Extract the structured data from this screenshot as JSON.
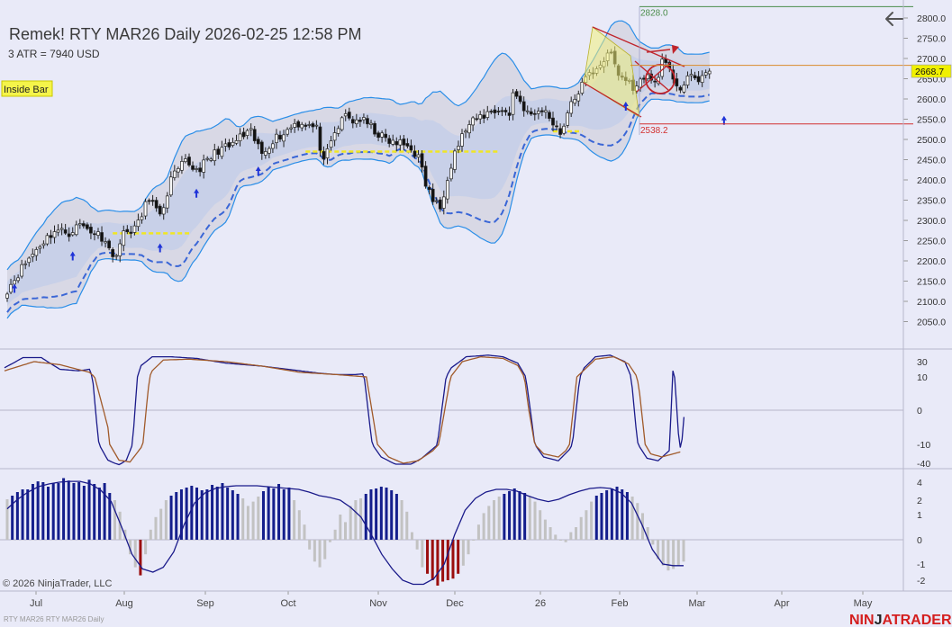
{
  "header": {
    "title": "Remek!  RTY MAR26  Daily  2026-02-25 12:58 PM",
    "atr_text": "3 ATR = 7940 USD",
    "inside_bar_label": "Inside Bar",
    "back_icon": "arrow-left-icon"
  },
  "footer": {
    "copyright": "© 2026 NinjaTrader, LLC",
    "series_label": "RTY MAR26 RTY MAR26 Daily",
    "brand_left": "NIN",
    "brand_mid": "J",
    "brand_right": "ATRADER"
  },
  "colors": {
    "background": "#e9eaf8",
    "bull_candle": "#ffffff",
    "bear_candle": "#111111",
    "outer_band": "#2a8ee8",
    "middle_dash": "#3a66d6",
    "pivot_line": "#f0e624",
    "stoch_k": "#1a1a8a",
    "stoch_d": "#a05a2a",
    "hist_positive_strong": "#141e8c",
    "hist_negative_strong": "#9b0e0e",
    "hist_weak": "#c2c2c2",
    "price_tag": "#f0f000",
    "high_line": "#4a8c4a",
    "low_line": "#d23030",
    "mid_line": "#d98a2a",
    "brand_red": "#d41e1e"
  },
  "chart_data": [
    {
      "type": "candlestick",
      "title": "RTY MAR26 Daily",
      "y_ticks": [
        2800,
        2750,
        2700,
        2650,
        2600,
        2550,
        2500,
        2450,
        2400,
        2350,
        2300,
        2250,
        2200,
        2150,
        2100,
        2050
      ],
      "y_tick_labels": [
        "2800.0",
        "2750.0",
        "2700.0",
        "2650.0",
        "2600.0",
        "2550.0",
        "2500.0",
        "2450.0",
        "2400.0",
        "2350.0",
        "2300.0",
        "2250.0",
        "2200.0",
        "2150.0",
        "2100.0",
        "2050.0"
      ],
      "ylim": [
        2025,
        2830
      ],
      "x_labels": [
        "Jul",
        "Aug",
        "Sep",
        "Oct",
        "Nov",
        "Dec",
        "26",
        "Feb",
        "Mar",
        "Apr",
        "May"
      ],
      "close_path": [
        [
          0,
          2130
        ],
        [
          5,
          2195
        ],
        [
          9,
          2240
        ],
        [
          13,
          2275
        ],
        [
          17,
          2270
        ],
        [
          20,
          2290
        ],
        [
          24,
          2270
        ],
        [
          27,
          2255
        ],
        [
          29,
          2205
        ],
        [
          32,
          2265
        ],
        [
          36,
          2290
        ],
        [
          39,
          2360
        ],
        [
          42,
          2305
        ],
        [
          45,
          2400
        ],
        [
          49,
          2445
        ],
        [
          52,
          2425
        ],
        [
          55,
          2445
        ],
        [
          58,
          2475
        ],
        [
          61,
          2480
        ],
        [
          64,
          2505
        ],
        [
          67,
          2515
        ],
        [
          70,
          2465
        ],
        [
          73,
          2500
        ],
        [
          76,
          2515
        ],
        [
          79,
          2540
        ],
        [
          82,
          2540
        ],
        [
          85,
          2525
        ],
        [
          87,
          2440
        ],
        [
          90,
          2515
        ],
        [
          93,
          2560
        ],
        [
          95,
          2545
        ],
        [
          97,
          2550
        ],
        [
          100,
          2530
        ],
        [
          103,
          2505
        ],
        [
          106,
          2490
        ],
        [
          108,
          2490
        ],
        [
          111,
          2480
        ],
        [
          113,
          2455
        ],
        [
          115,
          2390
        ],
        [
          117,
          2350
        ],
        [
          119,
          2330
        ],
        [
          121,
          2410
        ],
        [
          123,
          2470
        ],
        [
          126,
          2525
        ],
        [
          129,
          2550
        ],
        [
          132,
          2565
        ],
        [
          135,
          2575
        ],
        [
          138,
          2560
        ],
        [
          139,
          2620
        ],
        [
          142,
          2580
        ],
        [
          144,
          2555
        ],
        [
          147,
          2575
        ],
        [
          150,
          2545
        ],
        [
          152,
          2515
        ],
        [
          154,
          2565
        ],
        [
          157,
          2620
        ],
        [
          160,
          2660
        ],
        [
          163,
          2690
        ],
        [
          166,
          2710
        ],
        [
          168,
          2660
        ],
        [
          171,
          2640
        ],
        [
          173,
          2625
        ],
        [
          175,
          2660
        ],
        [
          178,
          2640
        ],
        [
          180,
          2690
        ],
        [
          183,
          2655
        ],
        [
          185,
          2625
        ],
        [
          188,
          2655
        ],
        [
          190,
          2650
        ],
        [
          193,
          2668.7
        ]
      ],
      "last_price": 2668.7,
      "last_price_label": "2668.7",
      "range_high": 2828.0,
      "range_high_label": "2828.0",
      "range_low": 2538.2,
      "range_low_label": "2538.2",
      "mid_level": 2683,
      "pivot_levels": [
        {
          "value": 2268,
          "from": 29,
          "to": 50
        },
        {
          "value": 2470,
          "from": 82,
          "to": 135
        },
        {
          "value": 2520,
          "from": 150,
          "to": 158
        }
      ],
      "up_arrows": [
        {
          "bar": 2,
          "value": 2130
        },
        {
          "bar": 18,
          "value": 2210
        },
        {
          "bar": 42,
          "value": 2230
        },
        {
          "bar": 52,
          "value": 2365
        },
        {
          "bar": 69,
          "value": 2420
        },
        {
          "bar": 170,
          "value": 2580
        },
        {
          "bar": 197,
          "value": 2545
        }
      ]
    },
    {
      "type": "line",
      "title": "Stochastic",
      "y_tick_labels": [
        "30",
        "10",
        "0",
        "-10",
        "-40"
      ],
      "series": [
        {
          "role": "k",
          "values": [
            [
              0,
              22
            ],
            [
              5,
              35
            ],
            [
              10,
              35
            ],
            [
              15,
              20
            ],
            [
              20,
              18
            ],
            [
              23,
              20
            ],
            [
              25,
              -4
            ],
            [
              28,
              -35
            ],
            [
              31,
              -43
            ],
            [
              33,
              -35
            ],
            [
              35,
              -5
            ],
            [
              37,
              25
            ],
            [
              40,
              36
            ],
            [
              45,
              36
            ],
            [
              52,
              34
            ],
            [
              60,
              28
            ],
            [
              70,
              24
            ],
            [
              85,
              15
            ],
            [
              90,
              13
            ],
            [
              95,
              13
            ],
            [
              97,
              14
            ],
            [
              99,
              -5
            ],
            [
              102,
              -30
            ],
            [
              106,
              -42
            ],
            [
              110,
              -42
            ],
            [
              113,
              -32
            ],
            [
              117,
              -12
            ],
            [
              121,
              22
            ],
            [
              125,
              36
            ],
            [
              131,
              38
            ],
            [
              135,
              36
            ],
            [
              139,
              28
            ],
            [
              143,
              -5
            ],
            [
              146,
              -30
            ],
            [
              150,
              -36
            ],
            [
              153,
              -18
            ],
            [
              157,
              22
            ],
            [
              160,
              36
            ],
            [
              164,
              38
            ],
            [
              168,
              30
            ],
            [
              171,
              -5
            ],
            [
              174,
              -32
            ],
            [
              177,
              -36
            ],
            [
              180,
              -20
            ],
            [
              181,
              18
            ],
            [
              183,
              -15
            ],
            [
              184,
              -2
            ]
          ]
        },
        {
          "role": "d",
          "values": [
            [
              0,
              18
            ],
            [
              8,
              30
            ],
            [
              15,
              26
            ],
            [
              23,
              16
            ],
            [
              28,
              -5
            ],
            [
              31,
              -35
            ],
            [
              34,
              -38
            ],
            [
              37,
              -15
            ],
            [
              40,
              18
            ],
            [
              43,
              32
            ],
            [
              50,
              33
            ],
            [
              60,
              30
            ],
            [
              70,
              24
            ],
            [
              80,
              16
            ],
            [
              90,
              13
            ],
            [
              98,
              10
            ],
            [
              101,
              -10
            ],
            [
              104,
              -30
            ],
            [
              108,
              -40
            ],
            [
              112,
              -36
            ],
            [
              116,
              -20
            ],
            [
              120,
              5
            ],
            [
              124,
              30
            ],
            [
              129,
              36
            ],
            [
              135,
              34
            ],
            [
              139,
              25
            ],
            [
              142,
              0
            ],
            [
              146,
              -25
            ],
            [
              150,
              -30
            ],
            [
              152,
              -20
            ],
            [
              155,
              10
            ],
            [
              160,
              33
            ],
            [
              165,
              36
            ],
            [
              169,
              27
            ],
            [
              172,
              5
            ],
            [
              175,
              -25
            ],
            [
              178,
              -30
            ],
            [
              183,
              -22
            ]
          ]
        }
      ]
    },
    {
      "type": "bar",
      "title": "Momentum histogram",
      "y_tick_labels": [
        "4",
        "2",
        "1",
        "0",
        "-1",
        "-2"
      ],
      "values": [
        2.1,
        2.5,
        2.9,
        3.2,
        3.2,
        3.8,
        4.1,
        4.0,
        3.5,
        3.9,
        3.9,
        4.5,
        4.2,
        3.9,
        4.0,
        3.6,
        4.3,
        3.8,
        3.4,
        3.9,
        2.8,
        2.0,
        1.2,
        0.4,
        -0.6,
        -1.2,
        -1.7,
        -0.6,
        0.4,
        0.9,
        1.4,
        2.0,
        2.5,
        2.9,
        3.2,
        3.4,
        3.6,
        3.4,
        3.1,
        3.2,
        3.7,
        3.5,
        3.9,
        3.4,
        3.1,
        2.7,
        2.2,
        1.6,
        1.9,
        2.4,
        3.0,
        3.5,
        3.3,
        3.8,
        3.2,
        3.4,
        2.0,
        1.3,
        0.6,
        -0.4,
        -0.9,
        -1.2,
        -0.8,
        -0.1,
        0.4,
        1.0,
        0.7,
        1.6,
        2.0,
        2.2,
        2.7,
        3.2,
        3.3,
        3.5,
        3.4,
        3.1,
        2.7,
        2.0,
        1.2,
        0.3,
        -0.4,
        -1.2,
        -1.6,
        -2.0,
        -2.4,
        -2.1,
        -2.0,
        -1.9,
        -1.6,
        -1.1,
        -0.6,
        0.0,
        0.6,
        1.1,
        1.6,
        2.0,
        2.4,
        2.7,
        3.0,
        3.3,
        3.0,
        2.8,
        2.4,
        1.9,
        1.3,
        0.8,
        0.5,
        0.2,
        0.0,
        -0.1,
        0.3,
        0.5,
        0.9,
        1.3,
        1.9,
        2.5,
        2.8,
        3.1,
        3.3,
        3.5,
        3.2,
        2.9,
        2.4,
        1.8,
        1.1,
        0.5,
        -0.2,
        -0.8,
        -1.1,
        -1.4,
        -1.3,
        -1.1,
        -0.9
      ],
      "signal": [
        1.4,
        2.1,
        2.9,
        3.5,
        3.8,
        4.0,
        4.1,
        4.1,
        3.8,
        3.1,
        1.9,
        0.5,
        -0.6,
        -1.3,
        -1.5,
        -1.2,
        -0.5,
        0.6,
        1.8,
        2.8,
        3.3,
        3.5,
        3.6,
        3.6,
        3.6,
        3.5,
        3.4,
        3.3,
        3.2,
        2.9,
        2.5,
        2.3,
        2.0,
        1.5,
        0.9,
        0.2,
        -0.6,
        -1.3,
        -2.0,
        -2.3,
        -2.3,
        -1.9,
        -1.0,
        0.2,
        1.3,
        2.2,
        2.9,
        3.2,
        3.2,
        3.0,
        2.5,
        2.1,
        1.9,
        2.1,
        2.6,
        3.0,
        3.3,
        3.4,
        3.3,
        2.8,
        1.8,
        0.6,
        -0.4,
        -1.0,
        -1.1,
        -1.1
      ]
    }
  ]
}
